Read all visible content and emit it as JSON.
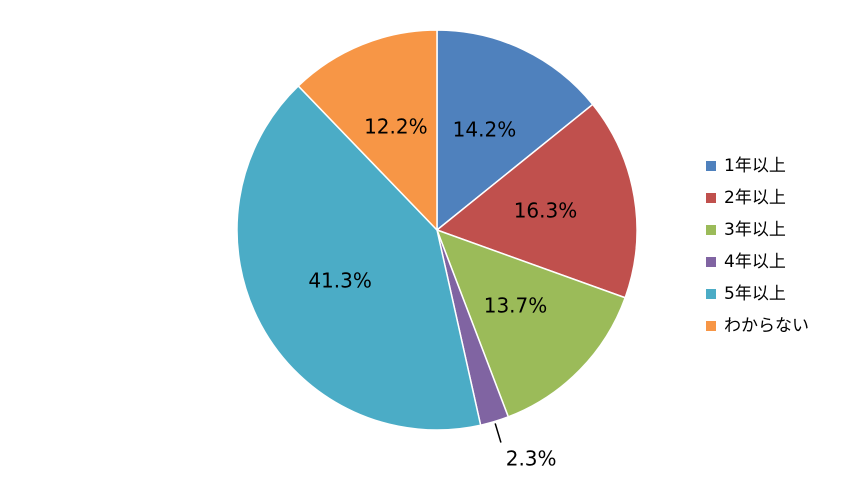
{
  "chart_data": {
    "type": "pie",
    "categories": [
      "1年以上",
      "2年以上",
      "3年以上",
      "4年以上",
      "5年以上",
      "わからない"
    ],
    "values": [
      14.2,
      16.3,
      13.7,
      2.3,
      41.3,
      12.2
    ],
    "value_labels": [
      "14.2%",
      "16.3%",
      "13.7%",
      "2.3%",
      "41.3%",
      "12.2%"
    ],
    "colors": [
      "#4f81bd",
      "#c0504d",
      "#9bbb59",
      "#8064a2",
      "#4bacc6",
      "#f79646"
    ],
    "legend": "right"
  }
}
